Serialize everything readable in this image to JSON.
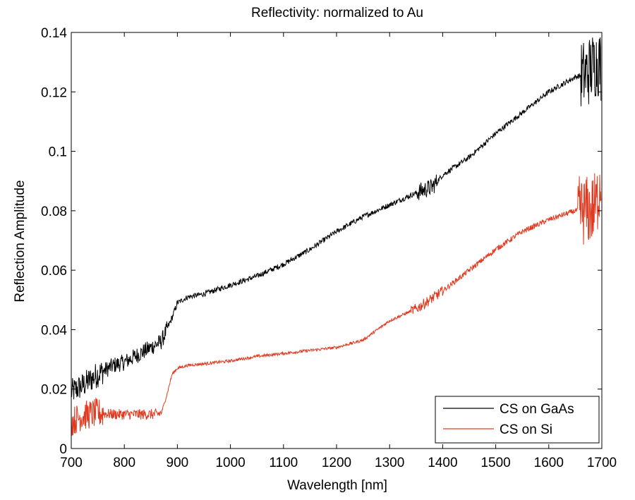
{
  "chart_data": {
    "type": "line",
    "title": "Reflectivity: normalized to Au",
    "xlabel": "Wavelength [nm]",
    "ylabel": "Reflection Amplitude",
    "xlim": [
      700,
      1700
    ],
    "ylim": [
      0,
      0.14
    ],
    "xticks": [
      700,
      800,
      900,
      1000,
      1100,
      1200,
      1300,
      1400,
      1500,
      1600,
      1700
    ],
    "xtick_labels": [
      "700",
      "800",
      "900",
      "1000",
      "1100",
      "1200",
      "1300",
      "1400",
      "1500",
      "1600",
      "1700"
    ],
    "yticks": [
      0,
      0.02,
      0.04,
      0.06,
      0.08,
      0.1,
      0.12,
      0.14
    ],
    "ytick_labels": [
      "0",
      "0.02",
      "0.04",
      "0.06",
      "0.08",
      "0.1",
      "0.12",
      "0.14"
    ],
    "grid": false,
    "legend_position": "bottom-right",
    "series": [
      {
        "name": "CS on GaAs",
        "color": "#000000",
        "x": [
          700,
          720,
          750,
          780,
          800,
          830,
          860,
          870,
          880,
          890,
          900,
          920,
          950,
          1000,
          1050,
          1100,
          1150,
          1200,
          1250,
          1300,
          1350,
          1380,
          1400,
          1450,
          1500,
          1550,
          1600,
          1650,
          1670,
          1680,
          1690,
          1695,
          1698
        ],
        "y": [
          0.019,
          0.021,
          0.025,
          0.028,
          0.029,
          0.032,
          0.035,
          0.036,
          0.04,
          0.044,
          0.049,
          0.051,
          0.052,
          0.055,
          0.058,
          0.062,
          0.067,
          0.073,
          0.078,
          0.082,
          0.086,
          0.088,
          0.092,
          0.098,
          0.106,
          0.113,
          0.12,
          0.125,
          0.126,
          0.128,
          0.13,
          0.13,
          0.128
        ]
      },
      {
        "name": "CS on Si",
        "color": "#e03a20",
        "x": [
          700,
          720,
          750,
          780,
          800,
          830,
          860,
          870,
          880,
          890,
          900,
          920,
          950,
          1000,
          1050,
          1100,
          1150,
          1200,
          1250,
          1300,
          1350,
          1380,
          1400,
          1450,
          1500,
          1550,
          1600,
          1650,
          1670,
          1680,
          1690,
          1695,
          1698
        ],
        "y": [
          0.009,
          0.011,
          0.012,
          0.0115,
          0.0115,
          0.0115,
          0.0115,
          0.012,
          0.018,
          0.025,
          0.027,
          0.028,
          0.0285,
          0.0295,
          0.031,
          0.032,
          0.033,
          0.034,
          0.0365,
          0.043,
          0.047,
          0.0505,
          0.053,
          0.06,
          0.067,
          0.073,
          0.077,
          0.08,
          0.08,
          0.08,
          0.082,
          0.088,
          0.09
        ]
      }
    ]
  }
}
